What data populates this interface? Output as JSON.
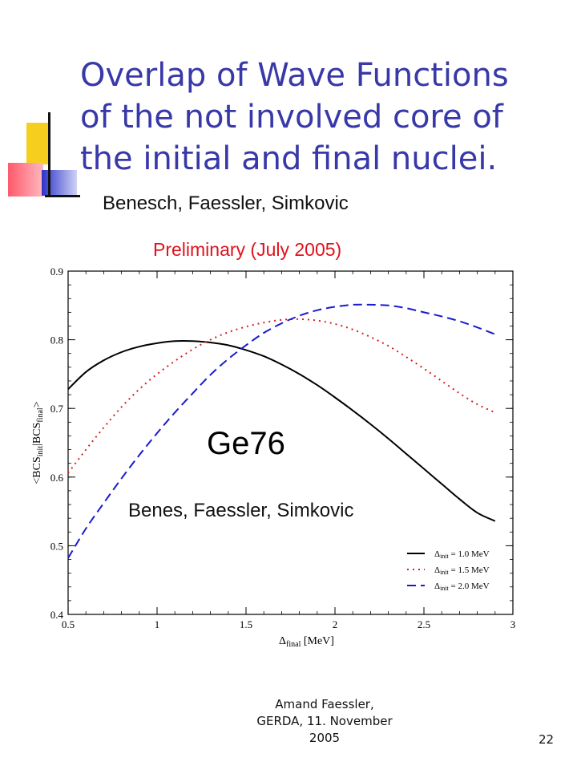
{
  "slide": {
    "title_lines": [
      "Overlap of Wave Functions",
      "of the not involved core of",
      "the initial and final nuclei."
    ],
    "subtitle": "Benesch, Faessler, Simkovic",
    "preliminary": "Preliminary (July 2005)",
    "footer_lines": [
      "Amand Faessler,",
      "GERDA, 11. November",
      "2005"
    ],
    "page_number": "22"
  },
  "chart_data": {
    "type": "line",
    "xlabel_base": "Δ",
    "xlabel_sub": "final",
    "xlabel_unit": " [MeV]",
    "ylabel_parts": [
      "<BCS",
      "init",
      "|BCS",
      "final",
      ">"
    ],
    "xlim": [
      0.5,
      3
    ],
    "ylim": [
      0.4,
      0.9
    ],
    "xticks": [
      "0.5",
      "1",
      "1.5",
      "2",
      "2.5",
      "3"
    ],
    "yticks": [
      "0.4",
      "0.5",
      "0.6",
      "0.7",
      "0.8",
      "0.9"
    ],
    "annotation_nucleus": "Ge76",
    "annotation_authors": "Benes, Faessler, Simkovic",
    "legend_position": "bottom-right",
    "series": [
      {
        "name": "Δinit = 1.0 MeV",
        "label_base": "Δ",
        "label_sub": "init",
        "label_rest": " = 1.0 MeV",
        "color": "#000000",
        "dash": "solid",
        "x": [
          0.5,
          0.6,
          0.7,
          0.8,
          0.9,
          1.0,
          1.1,
          1.2,
          1.3,
          1.4,
          1.5,
          1.6,
          1.7,
          1.8,
          1.9,
          2.0,
          2.1,
          2.2,
          2.3,
          2.4,
          2.5,
          2.6,
          2.7,
          2.8,
          2.9
        ],
        "y": [
          0.728,
          0.753,
          0.77,
          0.782,
          0.79,
          0.795,
          0.798,
          0.798,
          0.796,
          0.792,
          0.785,
          0.776,
          0.764,
          0.75,
          0.734,
          0.716,
          0.697,
          0.677,
          0.656,
          0.634,
          0.612,
          0.59,
          0.568,
          0.548,
          0.536
        ]
      },
      {
        "name": "Δinit = 1.5 MeV",
        "label_base": "Δ",
        "label_sub": "init",
        "label_rest": " = 1.5 MeV",
        "color": "#d42020",
        "dash": "dotted",
        "x": [
          0.5,
          0.6,
          0.7,
          0.8,
          0.9,
          1.0,
          1.1,
          1.2,
          1.3,
          1.4,
          1.5,
          1.6,
          1.7,
          1.8,
          1.9,
          2.0,
          2.1,
          2.2,
          2.3,
          2.4,
          2.5,
          2.6,
          2.7,
          2.8,
          2.9
        ],
        "y": [
          0.606,
          0.64,
          0.672,
          0.702,
          0.728,
          0.75,
          0.769,
          0.786,
          0.8,
          0.811,
          0.819,
          0.825,
          0.829,
          0.83,
          0.828,
          0.823,
          0.815,
          0.804,
          0.791,
          0.775,
          0.758,
          0.74,
          0.722,
          0.706,
          0.694
        ]
      },
      {
        "name": "Δinit = 2.0 MeV",
        "label_base": "Δ",
        "label_sub": "init",
        "label_rest": " = 2.0 MeV",
        "color": "#1a1ad0",
        "dash": "dashed",
        "x": [
          0.5,
          0.6,
          0.7,
          0.8,
          0.9,
          1.0,
          1.1,
          1.2,
          1.3,
          1.4,
          1.5,
          1.6,
          1.7,
          1.8,
          1.9,
          2.0,
          2.1,
          2.2,
          2.3,
          2.4,
          2.5,
          2.6,
          2.7,
          2.8,
          2.9
        ],
        "y": [
          0.482,
          0.525,
          0.562,
          0.598,
          0.632,
          0.664,
          0.694,
          0.722,
          0.749,
          0.772,
          0.792,
          0.81,
          0.824,
          0.835,
          0.843,
          0.848,
          0.851,
          0.851,
          0.85,
          0.846,
          0.84,
          0.834,
          0.827,
          0.818,
          0.808
        ]
      }
    ]
  }
}
